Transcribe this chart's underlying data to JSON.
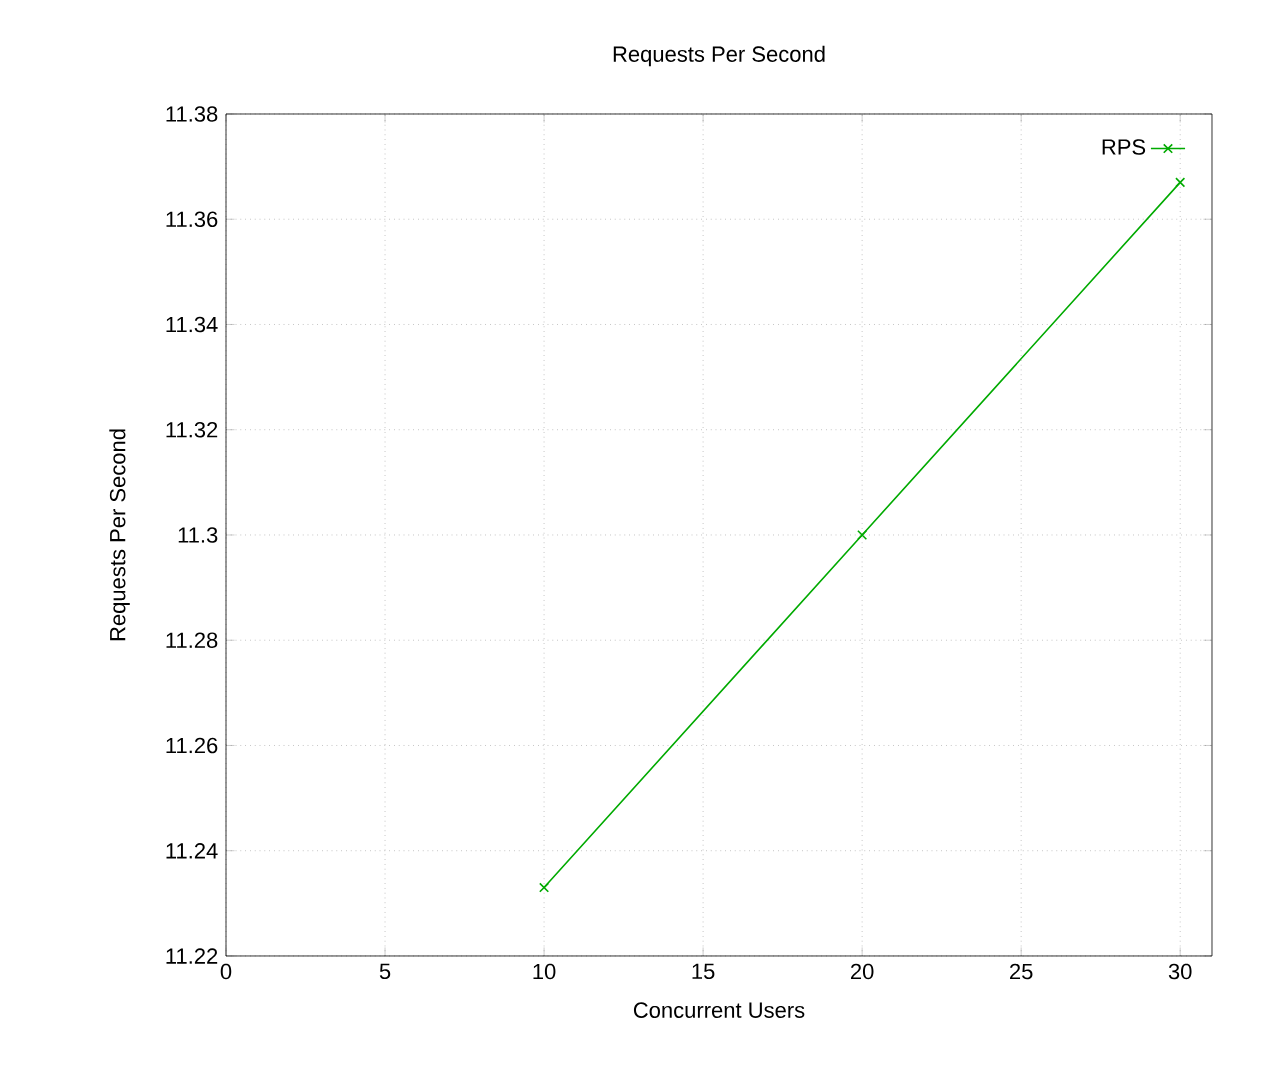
{
  "chart_data": {
    "type": "line",
    "title": "Requests Per Second",
    "xlabel": "Concurrent Users",
    "ylabel": "Requests Per Second",
    "x": [
      10,
      20,
      30
    ],
    "series": [
      {
        "name": "RPS",
        "color": "#00aa00",
        "values": [
          11.233,
          11.3,
          11.367
        ]
      }
    ],
    "xlim": [
      0,
      31
    ],
    "xticks": [
      0,
      5,
      10,
      15,
      20,
      25,
      30
    ],
    "ylim": [
      11.22,
      11.38
    ],
    "yticks": [
      11.22,
      11.24,
      11.26,
      11.28,
      11.3,
      11.32,
      11.34,
      11.36,
      11.38
    ],
    "grid": true,
    "legend": "top right",
    "marker": "cross",
    "line_style": "solid"
  }
}
